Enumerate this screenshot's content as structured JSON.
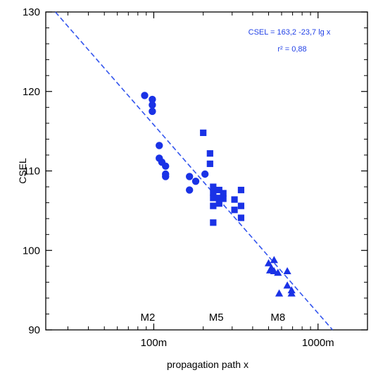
{
  "chart_data": {
    "type": "scatter",
    "xlabel": "propagation path x",
    "ylabel": "CSEL",
    "xscale": "log",
    "xlim": [
      22,
      2000
    ],
    "ylim": [
      90,
      130
    ],
    "x_tick_labels": [
      {
        "value": 100,
        "label": "100m"
      },
      {
        "value": 1000,
        "label": "1000m"
      }
    ],
    "y_ticks": [
      90,
      100,
      110,
      120,
      130
    ],
    "colors": {
      "marker": "#1a32e6",
      "fit_line": "#3355ee",
      "annotation": "#1f3fe6",
      "axes": "#000000"
    },
    "fit": {
      "equation": "CSEL = 163,2 -23,7 lg x",
      "r_squared_label": "r² = 0,88",
      "intercept": 163.2,
      "slope": -23.7,
      "style": "dashed"
    },
    "group_labels": [
      {
        "x": 92,
        "label": "M2"
      },
      {
        "x": 240,
        "label": "M5"
      },
      {
        "x": 570,
        "label": "M8"
      }
    ],
    "series": [
      {
        "name": "M2",
        "marker": "circle",
        "points": [
          [
            88,
            119.5
          ],
          [
            98,
            119.0
          ],
          [
            98,
            118.3
          ],
          [
            98,
            117.5
          ],
          [
            108,
            113.2
          ],
          [
            108,
            111.6
          ],
          [
            112,
            111.1
          ],
          [
            118,
            110.6
          ],
          [
            118,
            109.6
          ],
          [
            118,
            109.3
          ],
          [
            165,
            109.3
          ],
          [
            165,
            107.6
          ],
          [
            180,
            108.7
          ],
          [
            205,
            109.6
          ]
        ]
      },
      {
        "name": "M5",
        "marker": "square",
        "points": [
          [
            200,
            114.8
          ],
          [
            220,
            112.2
          ],
          [
            220,
            110.9
          ],
          [
            230,
            108.0
          ],
          [
            230,
            107.3
          ],
          [
            230,
            106.6
          ],
          [
            230,
            105.6
          ],
          [
            230,
            103.5
          ],
          [
            250,
            107.6
          ],
          [
            250,
            106.6
          ],
          [
            250,
            105.9
          ],
          [
            265,
            107.2
          ],
          [
            265,
            106.5
          ],
          [
            310,
            106.4
          ],
          [
            310,
            105.1
          ],
          [
            340,
            107.6
          ],
          [
            340,
            105.6
          ],
          [
            340,
            104.1
          ]
        ]
      },
      {
        "name": "M8",
        "marker": "triangle",
        "points": [
          [
            500,
            98.4
          ],
          [
            540,
            98.8
          ],
          [
            520,
            97.8
          ],
          [
            540,
            97.4
          ],
          [
            570,
            97.2
          ],
          [
            510,
            97.5
          ],
          [
            580,
            94.6
          ],
          [
            650,
            97.4
          ],
          [
            650,
            95.6
          ],
          [
            690,
            95.0
          ],
          [
            690,
            94.6
          ]
        ]
      }
    ]
  }
}
